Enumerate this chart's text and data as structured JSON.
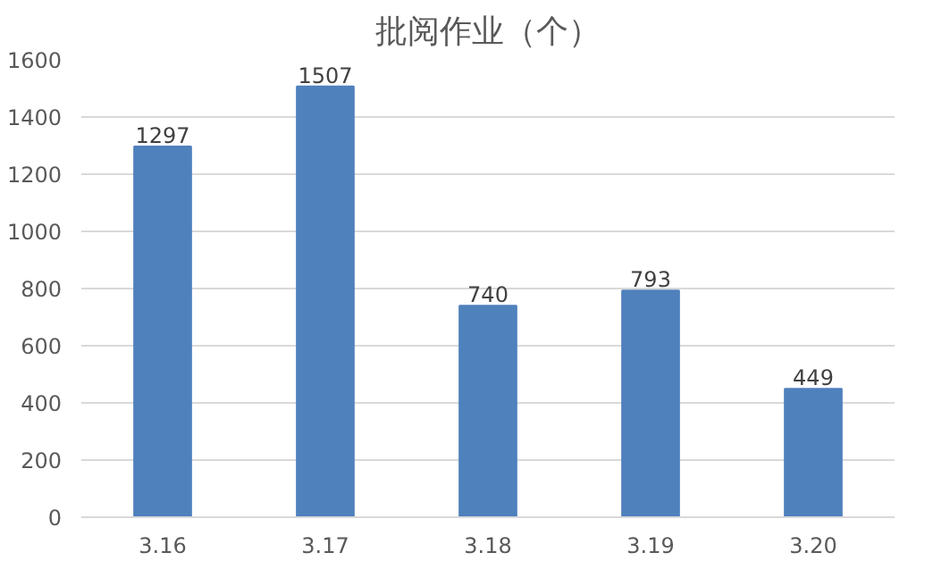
{
  "chart_data": {
    "type": "bar",
    "title": "批阅作业（个）",
    "categories": [
      "3.16",
      "3.17",
      "3.18",
      "3.19",
      "3.20"
    ],
    "values": [
      1297,
      1507,
      740,
      793,
      449
    ],
    "color": "#4f81bd",
    "ylim": [
      0,
      1600
    ],
    "yticks": [
      0,
      200,
      400,
      600,
      800,
      1000,
      1200,
      1400,
      1600
    ],
    "grid": "y",
    "data_labels": true
  }
}
